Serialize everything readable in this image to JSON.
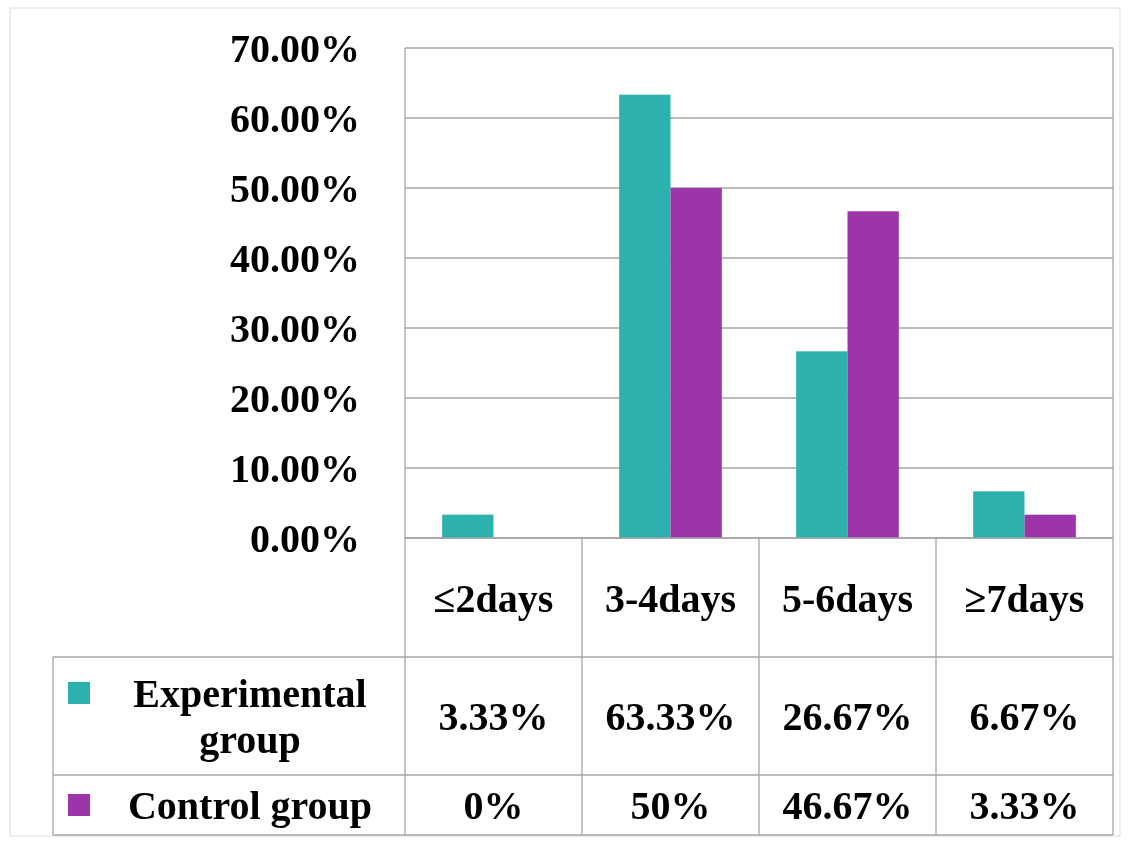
{
  "chart_data": {
    "type": "bar",
    "categories": [
      "≤2days",
      "3-4days",
      "5-6days",
      "≥7days"
    ],
    "series": [
      {
        "name": "Experimental group",
        "color": "#2cb1ae",
        "values": [
          3.33,
          63.33,
          26.67,
          6.67
        ],
        "value_labels": [
          "3.33%",
          "63.33%",
          "26.67%",
          "6.67%"
        ]
      },
      {
        "name": "Control group",
        "color": "#9b35a9",
        "values": [
          0,
          50,
          46.67,
          3.33
        ],
        "value_labels": [
          "0%",
          "50%",
          "46.67%",
          "3.33%"
        ]
      }
    ],
    "ylim": [
      0,
      70
    ],
    "yticks": [
      {
        "value": 0,
        "label": "0.00%"
      },
      {
        "value": 10,
        "label": "10.00%"
      },
      {
        "value": 20,
        "label": "20.00%"
      },
      {
        "value": 30,
        "label": "30.00%"
      },
      {
        "value": 40,
        "label": "40.00%"
      },
      {
        "value": 50,
        "label": "50.00%"
      },
      {
        "value": 60,
        "label": "60.00%"
      },
      {
        "value": 70,
        "label": "70.00%"
      }
    ],
    "grid": "y",
    "legend": "bottom"
  }
}
